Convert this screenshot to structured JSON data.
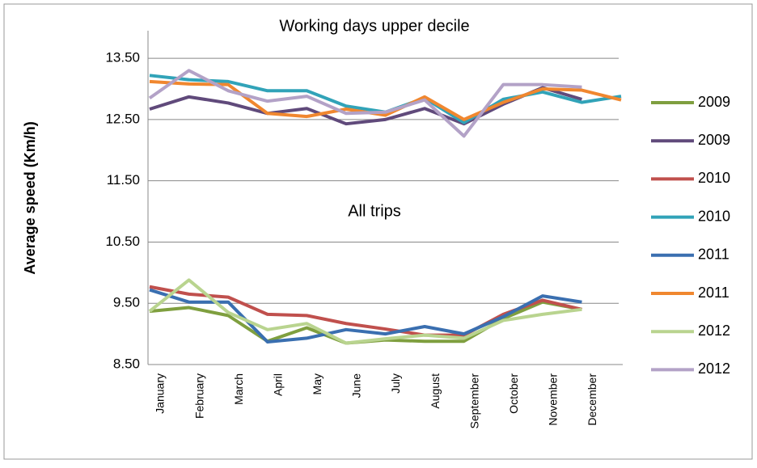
{
  "chart_data": {
    "type": "line",
    "annotations": [
      "Working days upper decile",
      "All trips"
    ],
    "y_label": "Average speed (Km/h)",
    "categories": [
      "January",
      "February",
      "March",
      "April",
      "May",
      "June",
      "July",
      "August",
      "September",
      "October",
      "November",
      "December",
      null
    ],
    "ylim": [
      8.5,
      13.95
    ],
    "yticks": [
      {
        "value": 8.5,
        "label": "8.50"
      },
      {
        "value": 9.5,
        "label": "9.50"
      },
      {
        "value": 10.5,
        "label": "10.50"
      },
      {
        "value": 11.5,
        "label": "11.50"
      },
      {
        "value": 12.5,
        "label": "12.50"
      },
      {
        "value": 13.5,
        "label": "13.50"
      }
    ],
    "grid": true,
    "legend": "right",
    "series": [
      {
        "name": "2009",
        "color": "#7f9f3f",
        "values": [
          9.37,
          9.43,
          9.3,
          8.88,
          9.1,
          8.85,
          8.9,
          8.88,
          8.88,
          9.25,
          9.52,
          9.4,
          null
        ]
      },
      {
        "name": "2009",
        "color": "#604a7b",
        "values": [
          12.67,
          12.87,
          12.77,
          12.6,
          12.68,
          12.43,
          12.5,
          12.68,
          12.43,
          12.75,
          13.02,
          12.83,
          null
        ]
      },
      {
        "name": "2010",
        "color": "#c0504d",
        "values": [
          9.77,
          9.65,
          9.6,
          9.32,
          9.3,
          9.17,
          9.08,
          8.98,
          8.98,
          9.32,
          9.55,
          9.4,
          null
        ]
      },
      {
        "name": "2010",
        "color": "#31a3b8",
        "values": [
          13.22,
          13.15,
          13.12,
          12.97,
          12.97,
          12.72,
          12.62,
          12.85,
          12.45,
          12.83,
          12.95,
          12.78,
          12.88
        ]
      },
      {
        "name": "2011",
        "color": "#3a6fb0",
        "values": [
          9.72,
          9.52,
          9.52,
          8.87,
          8.93,
          9.07,
          9.0,
          9.12,
          9.0,
          9.28,
          9.62,
          9.52,
          null
        ]
      },
      {
        "name": "2011",
        "color": "#f0872f",
        "values": [
          13.12,
          13.08,
          13.07,
          12.6,
          12.55,
          12.67,
          12.57,
          12.87,
          12.5,
          12.78,
          13.0,
          12.98,
          12.82
        ]
      },
      {
        "name": "2012",
        "color": "#b9d48f",
        "values": [
          9.37,
          9.88,
          9.35,
          9.07,
          9.17,
          8.85,
          8.92,
          8.98,
          8.93,
          9.22,
          9.32,
          9.4,
          null
        ]
      },
      {
        "name": "2012",
        "color": "#b3a2c7",
        "values": [
          12.85,
          13.3,
          12.97,
          12.8,
          12.88,
          12.6,
          12.62,
          12.82,
          12.23,
          13.07,
          13.07,
          13.03,
          null
        ]
      }
    ]
  }
}
